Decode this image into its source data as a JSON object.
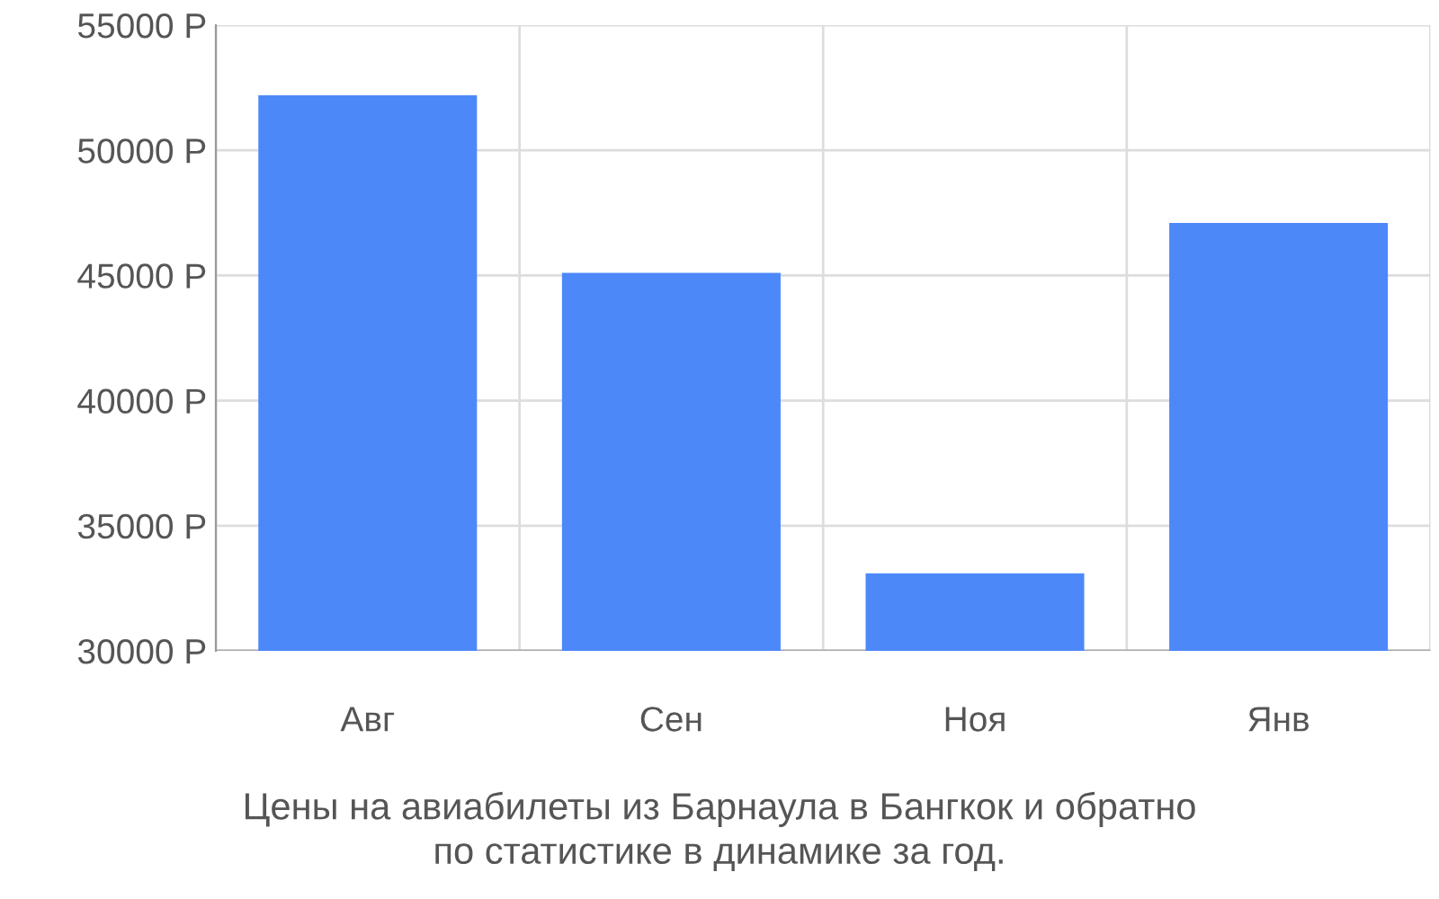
{
  "chart_data": {
    "type": "bar",
    "title": "Цены на авиабилеты из Барнаула в Бангкок и обратно\nпо статистике в динамике за год.",
    "categories": [
      "Авг",
      "Сен",
      "Ноя",
      "Янв"
    ],
    "values": [
      52200,
      45100,
      33100,
      47100
    ],
    "color": "#4d88f9",
    "ylim": [
      30000,
      55000
    ],
    "yticks": [
      {
        "value": 30000,
        "label": "30000 Р"
      },
      {
        "value": 35000,
        "label": "35000 Р"
      },
      {
        "value": 40000,
        "label": "40000 Р"
      },
      {
        "value": 45000,
        "label": "45000 Р"
      },
      {
        "value": 50000,
        "label": "50000 Р"
      },
      {
        "value": 55000,
        "label": "55000 Р"
      }
    ],
    "grid": true
  }
}
